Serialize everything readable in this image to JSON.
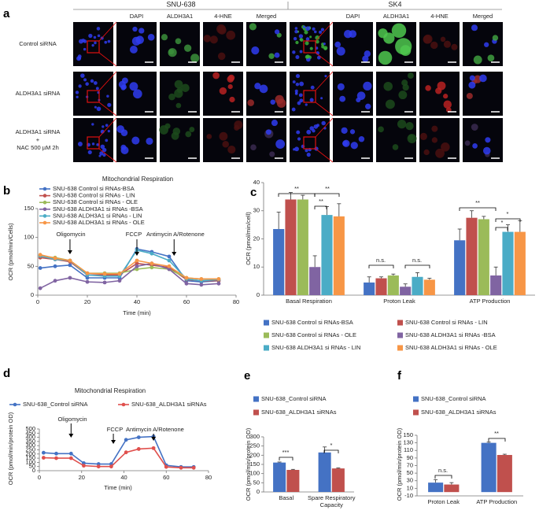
{
  "panel_labels": [
    "a",
    "b",
    "c",
    "d",
    "e",
    "f"
  ],
  "figure_a": {
    "groups": [
      "SNU-638",
      "SK4"
    ],
    "channels": [
      "DAPI",
      "ALDH3A1",
      "4-HNE",
      "Merged"
    ],
    "rows": [
      [
        "Control siRNA"
      ],
      [
        "ALDH3A1 siRNA"
      ],
      [
        "ALDH3A1 siRNA",
        "+",
        "NAC 500 µM 2h"
      ]
    ]
  },
  "chart_data": [
    {
      "type": "line",
      "title": "Mitochondrial Respiration",
      "x_label": "Time (min)",
      "y_label": "OCR (pmol/min/Cells)",
      "x": [
        1,
        7,
        13,
        20,
        27,
        33,
        40,
        46,
        53,
        60,
        66,
        73
      ],
      "xlim": [
        0,
        80
      ],
      "xticks": [
        0,
        20,
        40,
        60,
        80
      ],
      "ylim": [
        0,
        150
      ],
      "yticks": [
        0,
        50,
        100,
        150
      ],
      "annotations": [
        "Oligomycin",
        "FCCP",
        "Antimycin A/Rotenone"
      ],
      "series": [
        {
          "name": "SNU-638  Control si RNAs-BSA",
          "color": "#4472c4",
          "values": [
            47,
            50,
            52,
            30,
            30,
            30,
            80,
            75,
            67,
            25,
            23,
            25
          ]
        },
        {
          "name": "SNU-638  Control si RNAs - LIN",
          "color": "#c0504d",
          "values": [
            65,
            62,
            58,
            35,
            35,
            35,
            55,
            52,
            48,
            27,
            25,
            25
          ]
        },
        {
          "name": "SNU-638  Control si RNAs - OLE",
          "color": "#9bbb59",
          "values": [
            68,
            65,
            60,
            38,
            38,
            38,
            45,
            48,
            45,
            30,
            28,
            28
          ]
        },
        {
          "name": "SNU-638 ALDH3A1 si RNAs -BSA",
          "color": "#8064a2",
          "values": [
            12,
            25,
            30,
            23,
            22,
            25,
            50,
            55,
            45,
            20,
            18,
            20
          ]
        },
        {
          "name": "SNU-638 ALDH3A1 si RNAs - LIN",
          "color": "#4bacc6",
          "values": [
            68,
            62,
            60,
            35,
            33,
            33,
            78,
            72,
            60,
            28,
            25,
            27
          ]
        },
        {
          "name": "SNU-638 ALDH3A1 si RNAs - OLE",
          "color": "#f79646",
          "values": [
            70,
            64,
            60,
            38,
            37,
            37,
            60,
            55,
            50,
            30,
            28,
            28
          ]
        }
      ]
    },
    {
      "type": "bar",
      "y_label": "OCR (pmol/min/cell)",
      "categories": [
        "Basal Respiration",
        "Proton Leak",
        "ATP Production"
      ],
      "ylim": [
        0,
        40
      ],
      "yticks": [
        0,
        10,
        20,
        30,
        40
      ],
      "annotations": [
        "**",
        "**",
        "**",
        "n.s.",
        "n.s.",
        "**",
        "*",
        "*"
      ],
      "series": [
        {
          "name": "SNU-638 Control si RNAs-BSA",
          "color": "#4472c4",
          "values": [
            23.5,
            4.5,
            19.5
          ],
          "errors": [
            6,
            2,
            4
          ]
        },
        {
          "name": "SNU-638  Control si RNAs - LIN",
          "color": "#c0504d",
          "values": [
            34,
            6,
            27.5
          ],
          "errors": [
            2.5,
            0.5,
            2.5
          ]
        },
        {
          "name": "SNU-638  Control si RNAs - OLE",
          "color": "#9bbb59",
          "values": [
            34,
            7,
            27
          ],
          "errors": [
            1.5,
            0.5,
            1
          ]
        },
        {
          "name": "SNU-638 ALDH3A1 si RNAs -BSA",
          "color": "#8064a2",
          "values": [
            10,
            3,
            7
          ],
          "errors": [
            4,
            1,
            3
          ]
        },
        {
          "name": "SNU-638 ALDH3A1 si RNAs - LIN",
          "color": "#4bacc6",
          "values": [
            28.5,
            6.5,
            22.5
          ],
          "errors": [
            3,
            1.5,
            2.5
          ]
        },
        {
          "name": "SNU-638 ALDH3A1 si RNAs - OLE",
          "color": "#f79646",
          "values": [
            28,
            5.5,
            22.5
          ],
          "errors": [
            4.5,
            0.5,
            4
          ]
        }
      ]
    },
    {
      "type": "line",
      "title": "Mitochondrial Respiration",
      "x_label": "Time (min)",
      "y_label": "OCR (pmol/min/protein OD)",
      "x": [
        2,
        8,
        15,
        21,
        28,
        34,
        41,
        47,
        54,
        60,
        67,
        73
      ],
      "xlim": [
        0,
        80
      ],
      "xticks": [
        0,
        20,
        40,
        60,
        80
      ],
      "ylim": [
        0,
        500
      ],
      "yticks": [
        0,
        50,
        100,
        150,
        200,
        250,
        300,
        350,
        400,
        450,
        500
      ],
      "annotations": [
        "Oligomycin",
        "FCCP",
        "Antimycin A/Rotenone"
      ],
      "series": [
        {
          "name": "SNU-638_Control siRNA",
          "color": "#4472c4",
          "values": [
            215,
            205,
            205,
            90,
            80,
            80,
            370,
            400,
            410,
            65,
            45,
            45
          ]
        },
        {
          "name": "SNU-638_ALDH3A1 siRNAs",
          "color": "#e0504d",
          "values": [
            155,
            150,
            150,
            60,
            50,
            50,
            220,
            260,
            270,
            45,
            35,
            35
          ]
        }
      ]
    },
    {
      "type": "bar",
      "y_label": "OCR (pmol/min/protein OD)",
      "categories": [
        "Basal",
        "Spare Respiratory Capacity"
      ],
      "ylim": [
        0,
        300
      ],
      "yticks": [
        0,
        50,
        100,
        150,
        200,
        250,
        300
      ],
      "annotations": [
        "***",
        "*"
      ],
      "series": [
        {
          "name": "SNU-638_Control siRNA",
          "color": "#4472c4",
          "values": [
            160,
            215
          ],
          "errors": [
            3,
            30
          ]
        },
        {
          "name": "SNU-638_ALDH3A1 siRNAs",
          "color": "#c0504d",
          "values": [
            120,
            128
          ],
          "errors": [
            3,
            3
          ]
        }
      ]
    },
    {
      "type": "bar",
      "y_label": "OCR (pmol/min/protein OD)",
      "categories": [
        "Proton Leak",
        "ATP Production"
      ],
      "ylim": [
        -10,
        150
      ],
      "yticks": [
        -10,
        10,
        30,
        50,
        70,
        90,
        110,
        130,
        150
      ],
      "annotations": [
        "n.s.",
        "**"
      ],
      "series": [
        {
          "name": "SNU-638_Control siRNA",
          "color": "#4472c4",
          "values": [
            25,
            130
          ],
          "errors": [
            8,
            2
          ]
        },
        {
          "name": "SNU-638_ALDH3A1 siRNAs",
          "color": "#c0504d",
          "values": [
            20,
            98
          ],
          "errors": [
            5,
            2
          ]
        }
      ]
    }
  ]
}
